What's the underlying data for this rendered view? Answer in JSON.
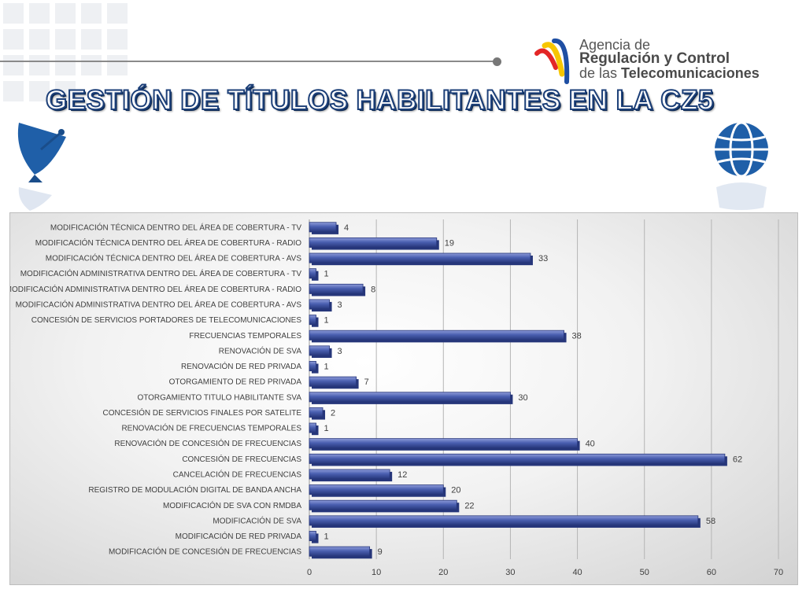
{
  "slide": {
    "title": "GESTIÓN DE TÍTULOS HABILITANTES EN LA CZ5",
    "logo": {
      "line1": "Agencia de",
      "line2": "Regulación y Control",
      "line3_prefix": "de las ",
      "line3_bold": "Telecomunicaciones"
    },
    "colors": {
      "bar": "#4a5fb0",
      "bar_dark": "#26367a",
      "bar_light": "#8e9bd9",
      "title_outline": "#1c3f78"
    }
  },
  "chart_data": {
    "type": "bar",
    "orientation": "horizontal",
    "categories": [
      "MODIFICACIÓN TÉCNICA DENTRO DEL ÁREA DE COBERTURA - TV",
      "MODIFICACIÓN TÉCNICA DENTRO DEL ÁREA DE COBERTURA - RADIO",
      "MODIFICACIÓN TÉCNICA DENTRO DEL ÁREA DE COBERTURA - AVS",
      "MODIFICACIÓN ADMINISTRATIVA DENTRO DEL ÁREA DE COBERTURA - TV",
      "MODIFICACIÓN ADMINISTRATIVA DENTRO DEL ÁREA DE COBERTURA - RADIO",
      "MODIFICACIÓN ADMINISTRATIVA DENTRO DEL ÁREA DE COBERTURA - AVS",
      "CONCESIÓN DE SERVICIOS PORTADORES DE TELECOMUNICACIONES",
      "FRECUENCIAS TEMPORALES",
      "RENOVACIÓN DE SVA",
      "RENOVACIÓN DE RED PRIVADA",
      "OTORGAMIENTO DE RED PRIVADA",
      "OTORGAMIENTO TITULO HABILITANTE SVA",
      "CONCESIÓN DE SERVICIOS FINALES POR SATELITE",
      "RENOVACIÓN DE FRECUENCIAS TEMPORALES",
      "RENOVACIÓN DE CONCESIÓN DE FRECUENCIAS",
      "CONCESIÓN DE FRECUENCIAS",
      "CANCELACIÓN DE FRECUENCIAS",
      "REGISTRO DE MODULACIÓN DIGITAL DE BANDA ANCHA",
      "MODIFICACIÓN DE SVA CON RMDBA",
      "MODIFICACIÓN DE SVA",
      "MODIFICACIÓN DE RED PRIVADA",
      "MODIFICACIÓN DE CONCESIÓN DE FRECUENCIAS"
    ],
    "values": [
      4,
      19,
      33,
      1,
      8,
      3,
      1,
      38,
      3,
      1,
      7,
      30,
      2,
      1,
      40,
      62,
      12,
      20,
      22,
      58,
      1,
      9
    ],
    "xlim": [
      0,
      70
    ],
    "xticks": [
      0,
      10,
      20,
      30,
      40,
      50,
      60,
      70
    ],
    "grid": true,
    "data_labels": true,
    "title": "",
    "xlabel": "",
    "ylabel": ""
  }
}
